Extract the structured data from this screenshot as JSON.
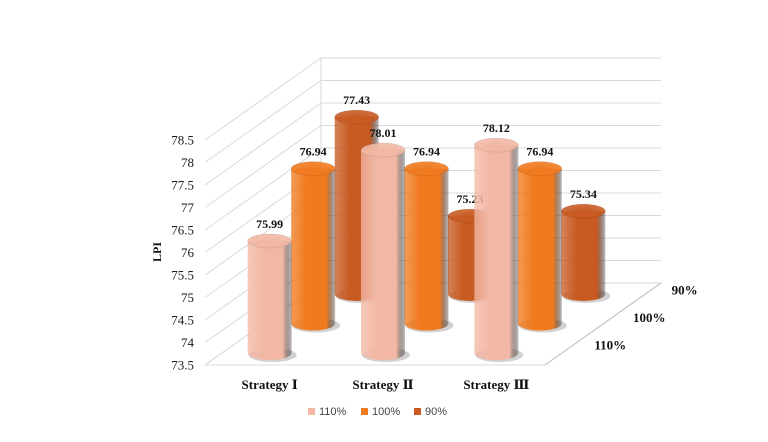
{
  "chart_data": {
    "type": "bar",
    "title": "",
    "ylabel": "LPI",
    "xlabel": "",
    "ylim": [
      73.5,
      78.5
    ],
    "yticks": [
      "73.5",
      "74",
      "74.5",
      "75",
      "75.5",
      "76",
      "76.5",
      "77",
      "77.5",
      "78",
      "78.5"
    ],
    "categories": [
      "Strategy Ⅰ",
      "Strategy Ⅱ",
      "Strategy Ⅲ"
    ],
    "series": [
      {
        "name": "110%",
        "color": "#f2b8a5",
        "values": [
          75.99,
          78.01,
          78.12
        ],
        "labels": [
          "75.99",
          "78.01",
          "78.12"
        ]
      },
      {
        "name": "100%",
        "color": "#f07a1e",
        "values": [
          76.94,
          76.94,
          76.94
        ],
        "labels": [
          "76.94",
          "76.94",
          "76.94"
        ]
      },
      {
        "name": "90%",
        "color": "#c85a22",
        "values": [
          77.43,
          75.23,
          75.34
        ],
        "labels": [
          "77.43",
          "75.23",
          "75.34"
        ]
      }
    ],
    "legend_position": "bottom",
    "grid": true
  }
}
